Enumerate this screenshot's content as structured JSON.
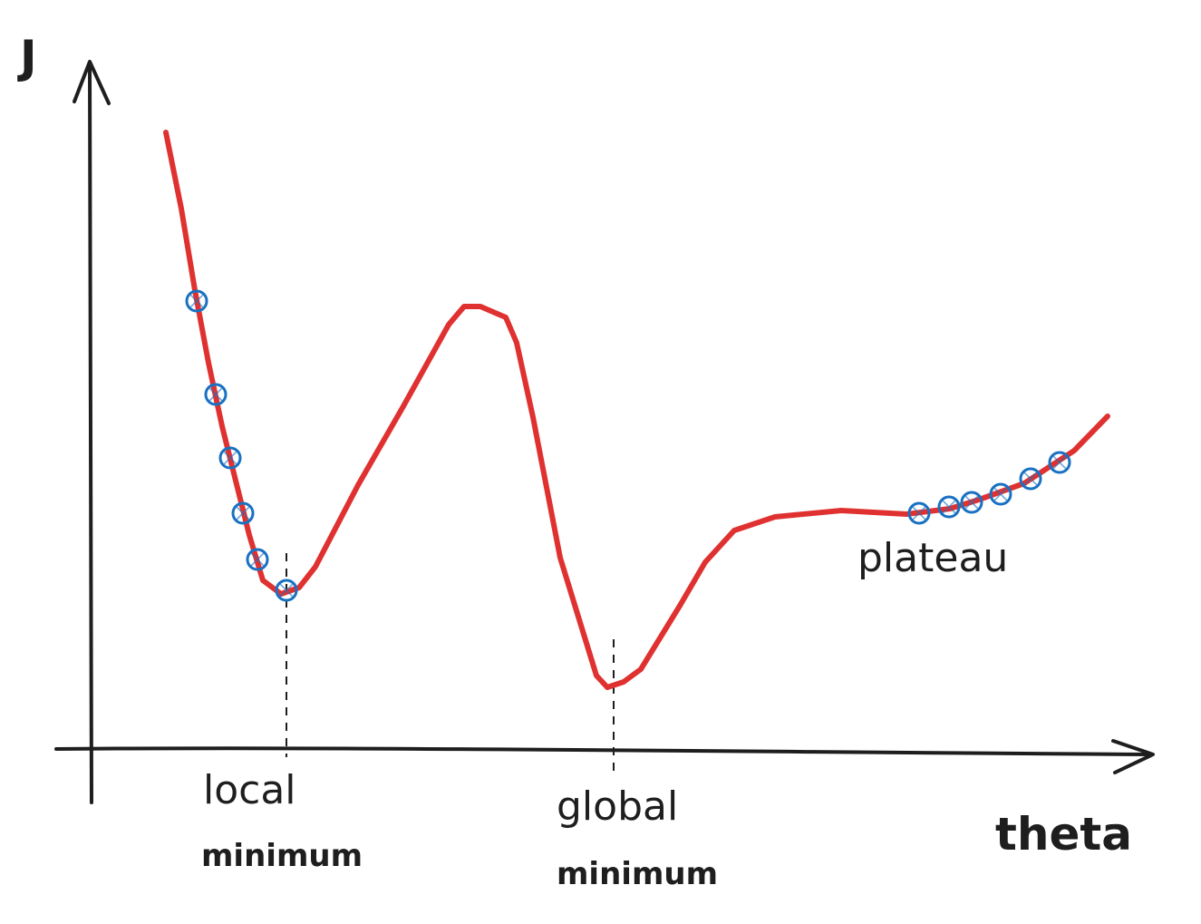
{
  "diagram": {
    "y_axis_label": "J",
    "x_axis_label": "theta",
    "local_minimum_label_line1": "local",
    "local_minimum_label_line2": "minimum",
    "global_minimum_label_line1": "global",
    "global_minimum_label_line2": "minimum",
    "plateau_label": "plateau",
    "curve_color": "#e03131",
    "step_marker_color": "#1971c2",
    "axis_color": "#1e1e1e"
  }
}
